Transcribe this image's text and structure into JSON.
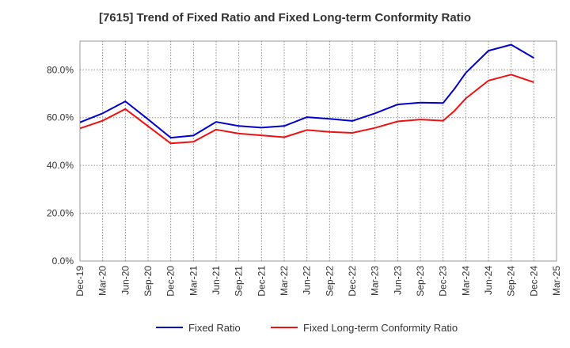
{
  "chart_data": {
    "type": "line",
    "title": "[7615]  Trend of Fixed Ratio and Fixed Long-term Conformity Ratio",
    "xlabel": "",
    "ylabel": "",
    "categories": [
      "Dec-19",
      "Mar-20",
      "Jun-20",
      "Sep-20",
      "Dec-20",
      "Mar-21",
      "Jun-21",
      "Sep-21",
      "Dec-21",
      "Mar-22",
      "Jun-22",
      "Sep-22",
      "Dec-22",
      "Mar-23",
      "Jun-23",
      "Sep-23",
      "Dec-23",
      "Mar-24",
      "Jun-24",
      "Sep-24",
      "Dec-24",
      "Mar-25"
    ],
    "y_ticks": [
      "0.0%",
      "20.0%",
      "40.0%",
      "60.0%",
      "80.0%"
    ],
    "ylim": [
      0,
      92
    ],
    "grid": true,
    "legend_position": "bottom",
    "series": [
      {
        "name": "Fixed Ratio",
        "color": "#0000cc",
        "x": [
          0,
          1,
          2,
          3,
          4,
          5,
          6,
          7,
          8,
          9,
          10,
          11,
          12,
          13,
          14,
          15,
          16,
          16.5,
          17,
          18,
          19,
          20
        ],
        "values": [
          58.0,
          61.8,
          66.8,
          59.3,
          51.6,
          52.5,
          58.2,
          56.5,
          55.8,
          56.5,
          60.2,
          59.5,
          58.6,
          61.8,
          65.5,
          66.3,
          66.1,
          72.0,
          78.7,
          88.0,
          90.5,
          85.0
        ]
      },
      {
        "name": "Fixed Long-term Conformity Ratio",
        "color": "#ee1111",
        "x": [
          0,
          1,
          2,
          3,
          4,
          5,
          6,
          7,
          8,
          9,
          10,
          11,
          12,
          13,
          14,
          15,
          16,
          16.5,
          17,
          18,
          19,
          20
        ],
        "values": [
          55.5,
          58.7,
          63.6,
          56.4,
          49.2,
          49.9,
          55.0,
          53.3,
          52.6,
          51.8,
          54.8,
          54.0,
          53.6,
          55.7,
          58.4,
          59.2,
          58.7,
          62.8,
          68.0,
          75.5,
          78.0,
          74.8
        ]
      }
    ]
  }
}
